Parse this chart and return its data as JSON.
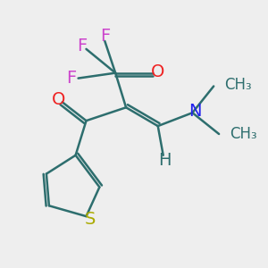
{
  "bg_color": "#eeeeee",
  "bond_color": "#2d6e6e",
  "bond_width": 1.8,
  "atom_colors": {
    "F": "#cc44cc",
    "O": "#ee2222",
    "N": "#2222ee",
    "S": "#aaaa00",
    "H": "#2d6e6e",
    "C": "#2d6e6e"
  },
  "font_size": 14,
  "font_size_small": 12,
  "xlim": [
    0,
    10
  ],
  "ylim": [
    0,
    10
  ]
}
